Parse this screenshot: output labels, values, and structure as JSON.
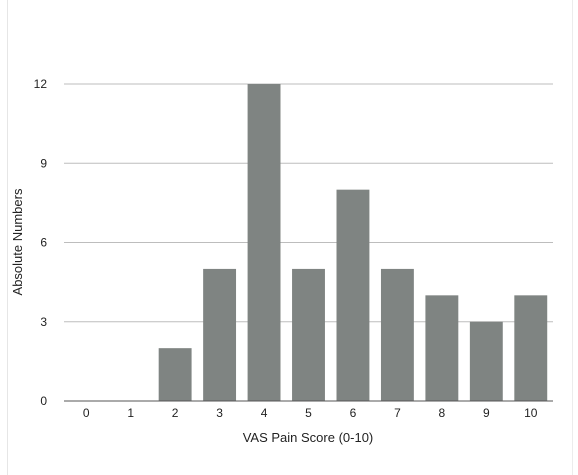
{
  "chart_data": {
    "type": "bar",
    "categories": [
      "0",
      "1",
      "2",
      "3",
      "4",
      "5",
      "6",
      "7",
      "8",
      "9",
      "10"
    ],
    "values": [
      0,
      0,
      2,
      5,
      12,
      5,
      8,
      5,
      4,
      3,
      4
    ],
    "title": "",
    "xlabel": "VAS Pain Score (0-10)",
    "ylabel": "Absolute Numbers",
    "ylim": [
      0,
      12
    ],
    "yticks": [
      0,
      3,
      6,
      9,
      12
    ],
    "grid": true,
    "bar_color": "#7f8482",
    "grid_color": "#bdbdbd"
  }
}
